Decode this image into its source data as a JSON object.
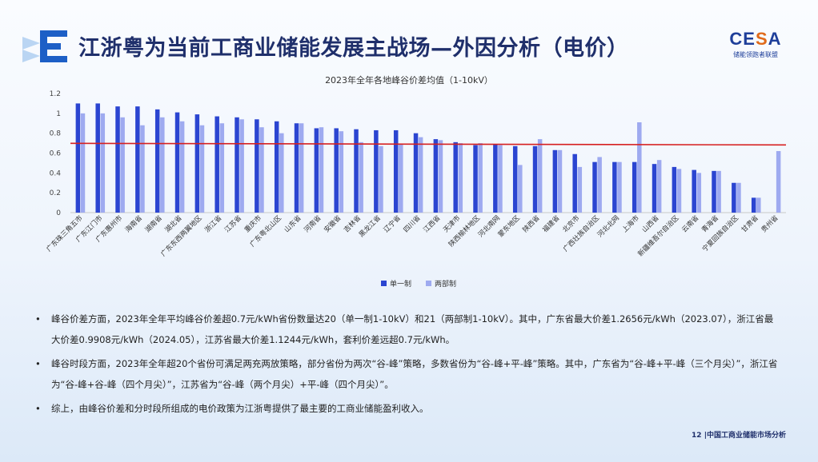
{
  "header": {
    "title": "江浙粤为当前工商业储能发展主战场—外因分析（电价）",
    "brand_mark": "CESA",
    "brand_sub": "储能领跑者联盟"
  },
  "chart_data": {
    "type": "bar",
    "title": "2023年全年各地峰谷价差均值（1-10kV）",
    "ylim": [
      0,
      1.2
    ],
    "yticks": [
      "0",
      "0.2",
      "0.4",
      "0.6",
      "0.8",
      "1",
      "1.2"
    ],
    "categories": [
      "广东珠三角五市",
      "广东江门市",
      "广东惠州市",
      "海南省",
      "湖南省",
      "湖北省",
      "广东东西两翼地区",
      "浙江省",
      "江苏省",
      "重庆市",
      "广东粤北山区",
      "山东省",
      "河南省",
      "安徽省",
      "吉林省",
      "黑龙江省",
      "辽宁省",
      "四川省",
      "江西省",
      "天津市",
      "陕西榆林地区",
      "河北南网",
      "蒙东地区",
      "陕西省",
      "福建省",
      "北京市",
      "广西壮族自治区",
      "河北北网",
      "上海市",
      "山西省",
      "新疆维吾尔自治区",
      "云南省",
      "青海省",
      "宁夏回族自治区",
      "甘肃省",
      "贵州省"
    ],
    "series": [
      {
        "name": "单一制",
        "color": "#2b45d1",
        "values": [
          1.1,
          1.1,
          1.07,
          1.07,
          1.04,
          1.01,
          0.99,
          0.97,
          0.96,
          0.94,
          0.92,
          0.9,
          0.85,
          0.85,
          0.84,
          0.83,
          0.83,
          0.8,
          0.74,
          0.71,
          0.68,
          0.69,
          0.67,
          0.67,
          0.63,
          0.59,
          0.51,
          0.51,
          0.51,
          0.49,
          0.46,
          0.43,
          0.42,
          0.3,
          0.15,
          null
        ]
      },
      {
        "name": "两部制",
        "color": "#9eaaf0",
        "values": [
          1.0,
          1.0,
          0.96,
          0.88,
          0.96,
          0.92,
          0.88,
          0.9,
          0.94,
          0.86,
          0.8,
          0.9,
          0.86,
          0.82,
          0.71,
          0.67,
          0.69,
          0.76,
          0.73,
          0.7,
          0.7,
          0.68,
          0.48,
          0.74,
          0.63,
          0.46,
          0.56,
          0.51,
          0.91,
          0.53,
          0.44,
          0.4,
          0.42,
          0.3,
          0.15,
          0.62
        ]
      }
    ],
    "reference_line": {
      "value": 0.69,
      "color": "#d62020"
    },
    "legend_position": "bottom"
  },
  "bullets": [
    "峰谷价差方面，2023年全年平均峰谷价差超0.7元/kWh省份数量达20（单一制1-10kV）和21（两部制1-10kV）。其中，广东省最大价差1.2656元/kWh（2023.07），浙江省最大价差0.9908元/kWh（2024.05），江苏省最大价差1.1244元/kWh，套利价差远超0.7元/kWh。",
    "峰谷时段方面，2023年全年超20个省份可满足两充两放策略，部分省份为两次“谷-峰”策略，多数省份为“谷-峰+平-峰”策略。其中，广东省为“谷-峰+平-峰（三个月尖）”，浙江省为“谷-峰+谷-峰（四个月尖）”，江苏省为“谷-峰（两个月尖）+平-峰（四个月尖）”。",
    "综上，由峰谷价差和分时段所组成的电价政策为江浙粤提供了最主要的工商业储能盈利收入。"
  ],
  "footer": {
    "page": "12",
    "text": "中国工商业储能市场分析"
  },
  "icons": {
    "logo": "e-arrow-logo-icon",
    "bullet": "bullet-dot-icon"
  }
}
